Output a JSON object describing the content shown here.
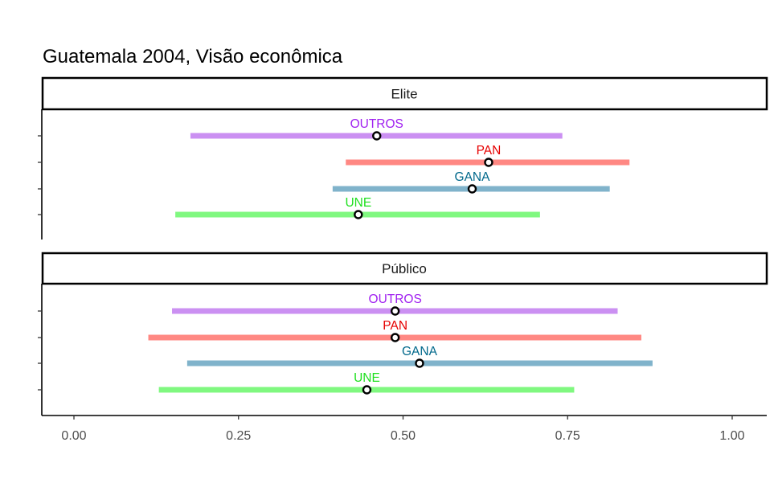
{
  "chart_data": {
    "type": "errorbar",
    "title": "Guatemala 2004, Visão econômica",
    "xlabel": "",
    "ylabel": "",
    "xlim": [
      -0.05,
      1.05
    ],
    "x_ticks": [
      0.0,
      0.25,
      0.5,
      0.75,
      1.0
    ],
    "x_tick_labels": [
      "0.00",
      "0.25",
      "0.50",
      "0.75",
      "1.00"
    ],
    "grid": false,
    "legend": "none",
    "colors": {
      "OUTROS": "#C77CFF",
      "PAN": "#F8766D",
      "GANA": "#00A9FF",
      "UNE": "#7CAE00"
    },
    "bar_colors": {
      "OUTROS": "#CB90F2",
      "PAN": "#FF8883",
      "GANA": "#80B3CB",
      "UNE": "#80F880"
    },
    "label_colors": {
      "OUTROS": "#A020F0",
      "PAN": "#E60000",
      "GANA": "#00688B",
      "UNE": "#20E020"
    },
    "panels": [
      {
        "name": "Elite",
        "rows": [
          {
            "party": "OUTROS",
            "estimate": 0.46,
            "low": 0.177,
            "high": 0.742
          },
          {
            "party": "PAN",
            "estimate": 0.63,
            "low": 0.413,
            "high": 0.844
          },
          {
            "party": "GANA",
            "estimate": 0.605,
            "low": 0.393,
            "high": 0.814
          },
          {
            "party": "UNE",
            "estimate": 0.432,
            "low": 0.154,
            "high": 0.708
          }
        ]
      },
      {
        "name": "Público",
        "rows": [
          {
            "party": "OUTROS",
            "estimate": 0.488,
            "low": 0.149,
            "high": 0.826
          },
          {
            "party": "PAN",
            "estimate": 0.488,
            "low": 0.113,
            "high": 0.862
          },
          {
            "party": "GANA",
            "estimate": 0.525,
            "low": 0.172,
            "high": 0.879
          },
          {
            "party": "UNE",
            "estimate": 0.445,
            "low": 0.129,
            "high": 0.76
          }
        ]
      }
    ]
  }
}
